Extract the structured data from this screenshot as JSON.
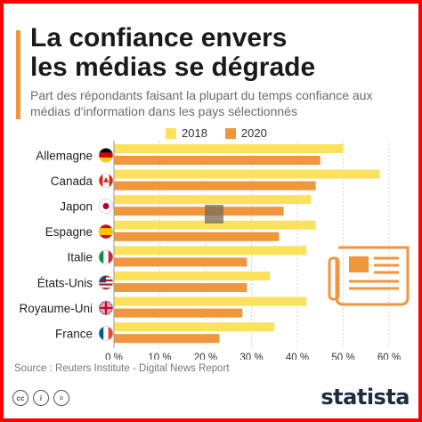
{
  "title_line1": "La confiance envers",
  "title_line2": "les médias se dégrade",
  "subtitle": "Part des répondants faisant la plupart du temps confiance aux médias d'information dans les pays sélectionnés",
  "source": "Source : Reuters Institute - Digital News Report",
  "brand": "statista",
  "footer_icons": [
    "cc-icon",
    "by-icon",
    "nd-icon"
  ],
  "colors": {
    "s2018": "#fbe15c",
    "s2020": "#f0963c",
    "accent": "#f0963c",
    "frame": "#ff0000",
    "grid": "#d8d8d8"
  },
  "chart_data": {
    "type": "bar",
    "orientation": "horizontal",
    "categories": [
      "Allemagne",
      "Canada",
      "Japon",
      "Espagne",
      "Italie",
      "États-Unis",
      "Royaume-Uni",
      "France"
    ],
    "flags": [
      "germany-flag-icon",
      "canada-flag-icon",
      "japan-flag-icon",
      "spain-flag-icon",
      "italy-flag-icon",
      "usa-flag-icon",
      "uk-flag-icon",
      "france-flag-icon"
    ],
    "series": [
      {
        "name": "2018",
        "values": [
          50,
          58,
          43,
          44,
          42,
          34,
          42,
          35
        ]
      },
      {
        "name": "2020",
        "values": [
          45,
          44,
          37,
          36,
          29,
          29,
          28,
          23
        ]
      }
    ],
    "xlim": [
      0,
      60
    ],
    "xticks": [
      0,
      10,
      20,
      30,
      40,
      50,
      60
    ],
    "xtick_labels": [
      "0 %",
      "10 %",
      "20 %",
      "30 %",
      "40 %",
      "50 %",
      "60 %"
    ],
    "grid": true,
    "legend_position": "top"
  }
}
